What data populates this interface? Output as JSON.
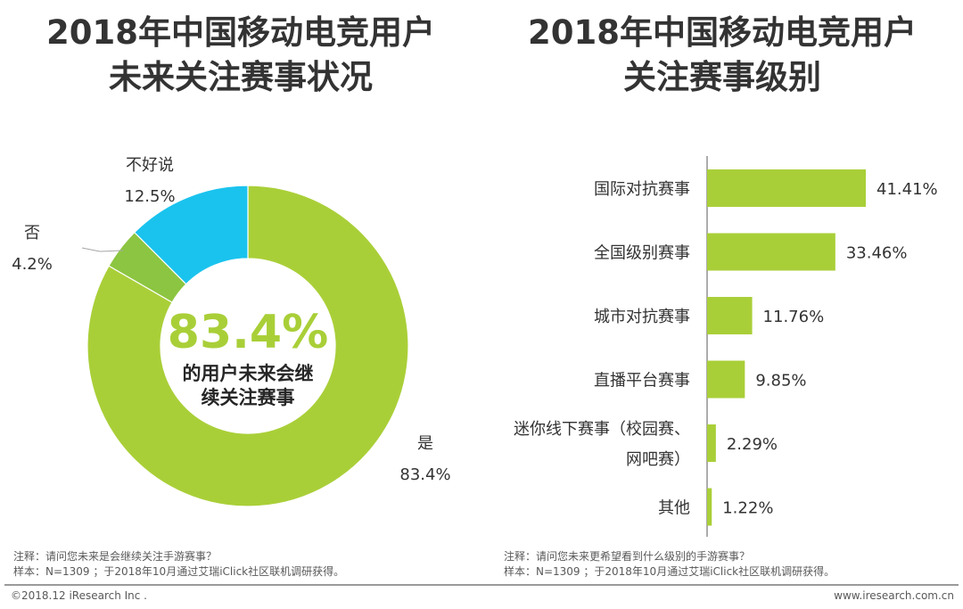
{
  "titles": {
    "left": [
      "2018年中国移动电竞用户",
      "未来关注赛事状况"
    ],
    "right": [
      "2018年中国移动电竞用户",
      "关注赛事级别"
    ]
  },
  "chart_data": [
    {
      "type": "pie",
      "variant": "donut",
      "labels": [
        "是",
        "否",
        "不好说"
      ],
      "values": [
        83.4,
        4.2,
        12.5
      ],
      "value_labels": [
        "83.4%",
        "4.2%",
        "12.5%"
      ],
      "colors": [
        "#a9cf38",
        "#8cc541",
        "#1ac3ee"
      ],
      "center_value": "83.4%",
      "center_text": [
        "的用户未来会继",
        "续关注赛事"
      ]
    },
    {
      "type": "bar",
      "orientation": "horizontal",
      "categories": [
        "国际对抗赛事",
        "全国级别赛事",
        "城市对抗赛事",
        "直播平台赛事",
        "迷你线下赛事（校园赛、网吧赛）",
        "其他"
      ],
      "category_lines": [
        [
          "国际对抗赛事"
        ],
        [
          "全国级别赛事"
        ],
        [
          "城市对抗赛事"
        ],
        [
          "直播平台赛事"
        ],
        [
          "迷你线下赛事（校园赛、",
          "网吧赛）"
        ],
        [
          "其他"
        ]
      ],
      "values": [
        41.41,
        33.46,
        11.76,
        9.85,
        2.29,
        1.22
      ],
      "value_labels": [
        "41.41%",
        "33.46%",
        "11.76%",
        "9.85%",
        "2.29%",
        "1.22%"
      ],
      "color": "#a9cf38"
    }
  ],
  "notes": {
    "left": [
      "注释：请问您未来是会继续关注手游赛事？",
      "样本：N=1309 ；于2018年10月通过艾瑞iClick社区联机调研获得。"
    ],
    "right": [
      "注释：请问您未来更希望看到什么级别的手游赛事？",
      "样本：N=1309 ；于2018年10月通过艾瑞iClick社区联机调研获得。"
    ]
  },
  "footer": {
    "copyright": "©2018.12 iResearch Inc .",
    "site": "www.iresearch.com.cn"
  }
}
